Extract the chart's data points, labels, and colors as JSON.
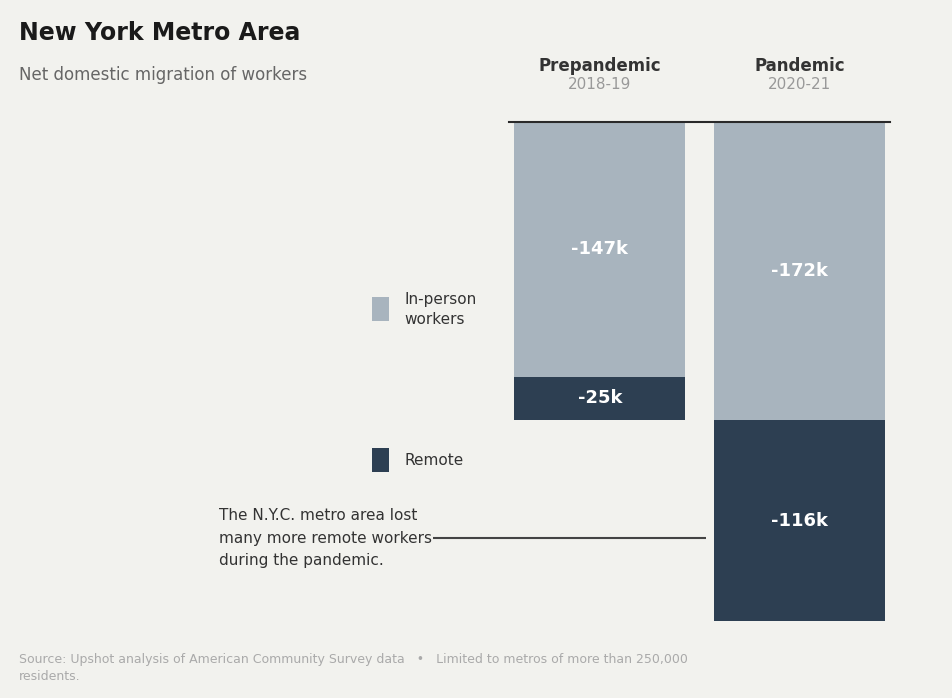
{
  "title": "New York Metro Area",
  "subtitle": "Net domestic migration of workers",
  "col_labels": [
    "Prepandemic",
    "Pandemic"
  ],
  "col_sublabels": [
    "2018-19",
    "2020-21"
  ],
  "inperson_values": [
    -147,
    -172
  ],
  "remote_values": [
    -25,
    -116
  ],
  "inperson_color": "#a8b4be",
  "remote_color": "#2d3f52",
  "bar_positions": [
    0.63,
    0.84
  ],
  "bar_width": 0.18,
  "legend_inperson_label": "In-person\nworkers",
  "legend_remote_label": "Remote",
  "annotation_text": "The N.Y.C. metro area lost\nmany more remote workers\nduring the pandemic.",
  "source_text": "Source: Upshot analysis of American Community Survey data   •   Limited to metros of more than 250,000\nresidents.",
  "background_color": "#f2f2ee",
  "title_color": "#1a1a1a",
  "subtitle_color": "#666666",
  "label_color_main": "#333333",
  "label_color_sub": "#999999",
  "bar_text_color": "#ffffff",
  "source_color": "#aaaaaa",
  "ylim": [
    -300,
    30
  ],
  "figsize": [
    9.52,
    6.98
  ],
  "dpi": 100
}
